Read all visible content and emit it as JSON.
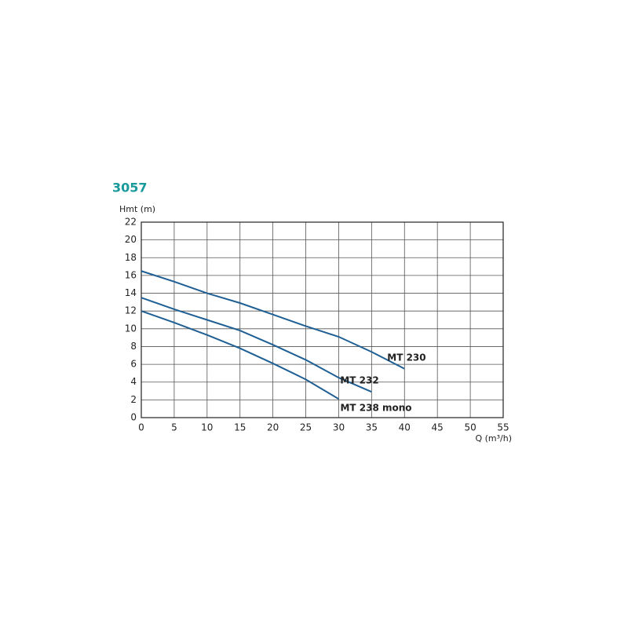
{
  "chart_data": {
    "type": "line",
    "title": "3057",
    "y_label": "Hmt (m)",
    "x_label": "Q (m³/h)",
    "xlim": [
      0,
      55
    ],
    "xticks": [
      0,
      5,
      10,
      15,
      20,
      25,
      30,
      35,
      40,
      45,
      50,
      55
    ],
    "ylim": [
      0,
      22
    ],
    "yticks": [
      0,
      2,
      4,
      6,
      8,
      10,
      12,
      14,
      16,
      18,
      20,
      22
    ],
    "grid": true,
    "series": [
      {
        "name": "MT 230",
        "color": "#1f5f93",
        "x": [
          0,
          5,
          10,
          15,
          20,
          25,
          30,
          35,
          40
        ],
        "values": [
          16.5,
          15.3,
          14,
          12.9,
          11.6,
          10.3,
          9.1,
          7.4,
          5.5
        ]
      },
      {
        "name": "MT 232",
        "color": "#1f5f93",
        "x": [
          0,
          5,
          10,
          15,
          20,
          25,
          30,
          35
        ],
        "values": [
          13.5,
          12.2,
          11,
          9.8,
          8.2,
          6.5,
          4.5,
          2.9
        ]
      },
      {
        "name": "MT 238 mono",
        "color": "#1f5f93",
        "x": [
          0,
          5,
          10,
          15,
          20,
          25,
          30
        ],
        "values": [
          12,
          10.7,
          9.3,
          7.8,
          6.1,
          4.3,
          2.1
        ]
      }
    ]
  }
}
